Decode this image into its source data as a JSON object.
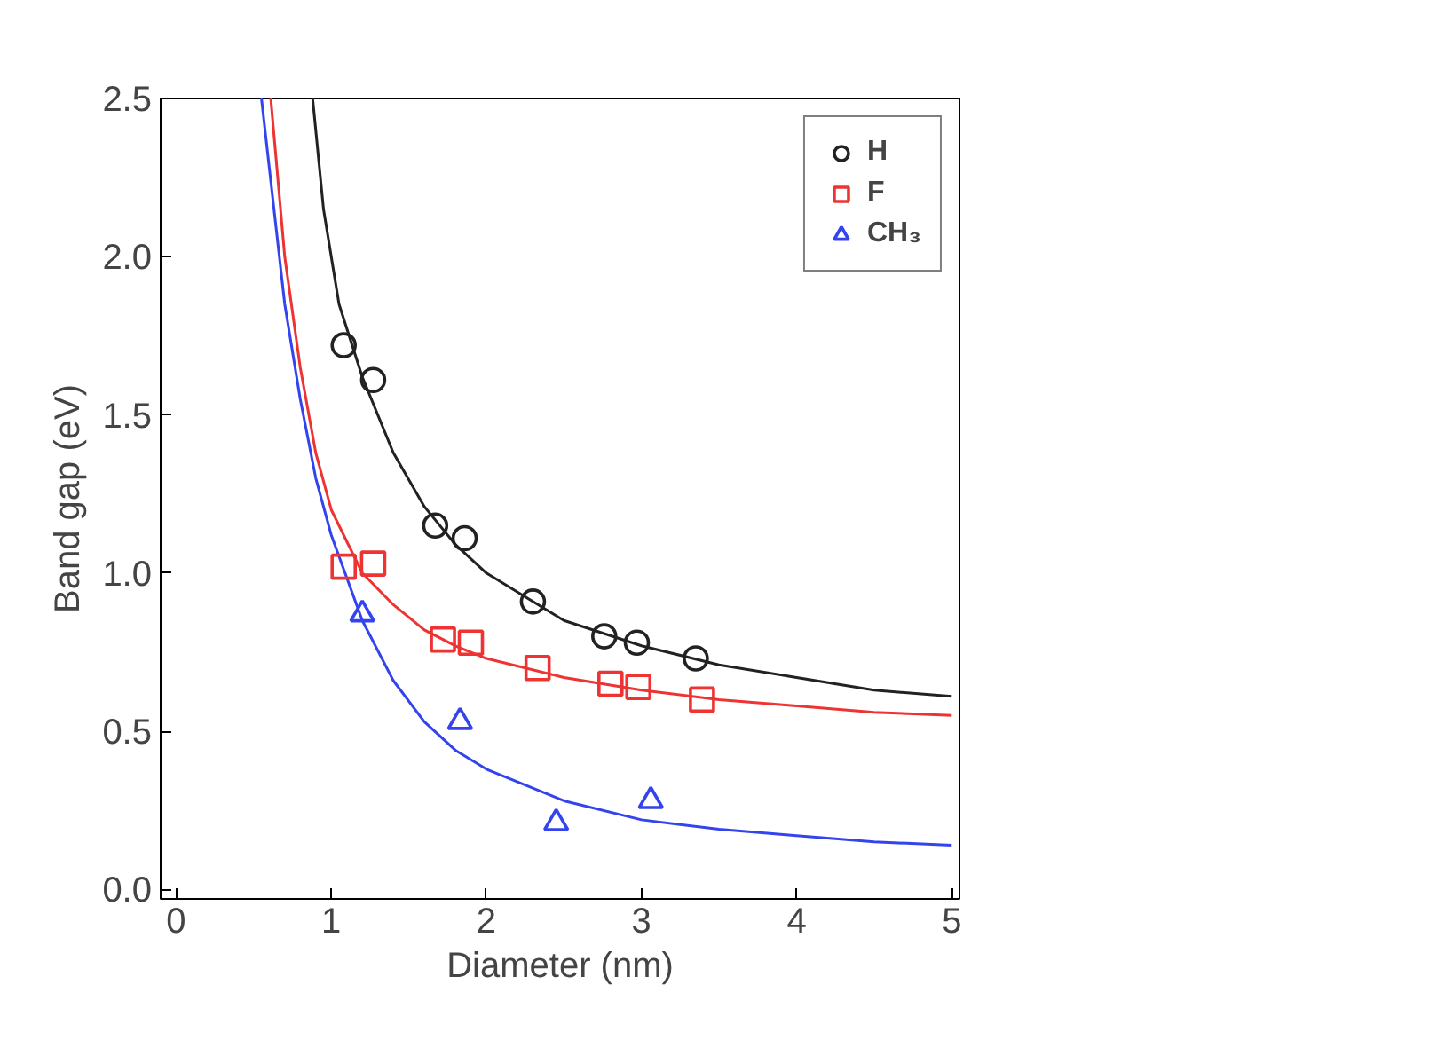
{
  "chart_data": {
    "type": "scatter",
    "xlabel": "Diameter (nm)",
    "ylabel": "Band gap (eV)",
    "xlim": [
      -0.1,
      5.05
    ],
    "ylim": [
      -0.03,
      2.5
    ],
    "xticks": [
      0,
      1,
      2,
      3,
      4,
      5
    ],
    "yticks": [
      {
        "value": 0,
        "label": "0.0"
      },
      0.5,
      {
        "value": 1,
        "label": "1.0"
      },
      1.5,
      {
        "value": 2,
        "label": "2.0"
      },
      2.5
    ],
    "grid": false,
    "legend": "top right",
    "series": [
      {
        "name": "H",
        "color": "#222222",
        "marker": "circle",
        "x": [
          1.08,
          1.27,
          1.67,
          1.86,
          2.3,
          2.76,
          2.97,
          3.35
        ],
        "values": [
          1.72,
          1.61,
          1.15,
          1.11,
          0.91,
          0.8,
          0.78,
          0.73
        ]
      },
      {
        "name": "F",
        "color": "#ee3333",
        "marker": "square",
        "x": [
          1.08,
          1.27,
          1.72,
          1.9,
          2.33,
          2.8,
          2.98,
          3.39
        ],
        "values": [
          1.02,
          1.03,
          0.79,
          0.78,
          0.7,
          0.65,
          0.64,
          0.6
        ]
      },
      {
        "name": "CH₃",
        "color": "#3344ee",
        "marker": "triangle",
        "x": [
          1.2,
          1.83,
          2.45,
          3.06
        ],
        "values": [
          0.87,
          0.53,
          0.21,
          0.28
        ]
      },
      {
        "type": "line",
        "color": "#222222",
        "x": [
          0.88,
          0.95,
          1.05,
          1.2,
          1.4,
          1.6,
          1.8,
          2.0,
          2.5,
          3.0,
          3.5,
          4.0,
          4.5,
          5.0
        ],
        "values": [
          2.5,
          2.15,
          1.85,
          1.62,
          1.38,
          1.21,
          1.09,
          1.0,
          0.85,
          0.77,
          0.71,
          0.67,
          0.63,
          0.61
        ]
      },
      {
        "type": "line",
        "color": "#ee3333",
        "x": [
          0.61,
          0.7,
          0.8,
          0.9,
          1.0,
          1.2,
          1.4,
          1.6,
          1.8,
          2.0,
          2.5,
          3.0,
          3.5,
          4.0,
          4.5,
          5.0
        ],
        "values": [
          2.5,
          2.0,
          1.65,
          1.38,
          1.2,
          1.0,
          0.9,
          0.82,
          0.77,
          0.73,
          0.67,
          0.63,
          0.6,
          0.58,
          0.56,
          0.55
        ]
      },
      {
        "type": "line",
        "color": "#3344ee",
        "x": [
          0.55,
          0.7,
          0.8,
          0.9,
          1.0,
          1.2,
          1.4,
          1.6,
          1.8,
          2.0,
          2.5,
          3.0,
          3.5,
          4.0,
          4.5,
          5.0
        ],
        "values": [
          2.5,
          1.85,
          1.55,
          1.3,
          1.12,
          0.85,
          0.66,
          0.53,
          0.44,
          0.38,
          0.28,
          0.22,
          0.19,
          0.17,
          0.15,
          0.14
        ]
      }
    ]
  }
}
